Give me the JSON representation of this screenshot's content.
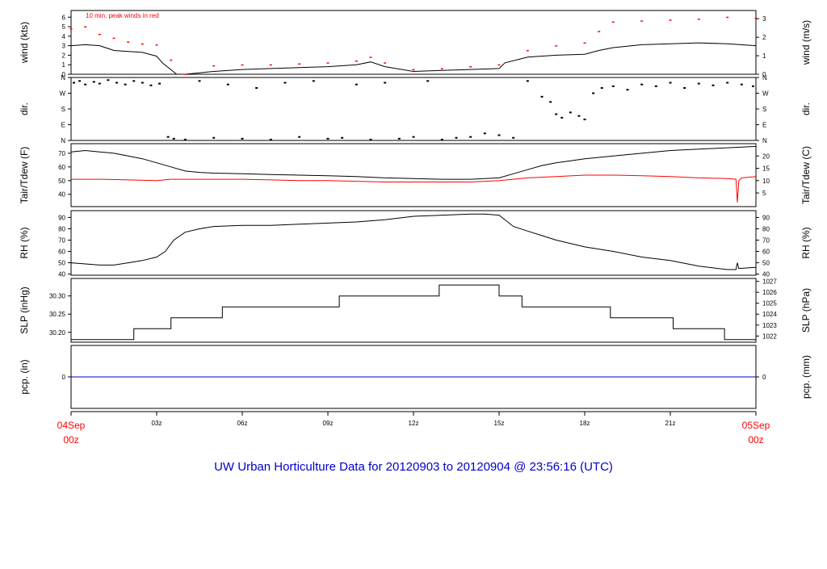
{
  "title": "UW Urban Horticulture Data for 20120903  to  20120904 @ 23:56:16  (UTC)",
  "annotation": "10 min. peak winds in red",
  "colors": {
    "axis": "#000000",
    "primary": "#000000",
    "secondary": "#ff0000",
    "precip": "#0000cc",
    "title": "#0000cc",
    "date": "#ff0000"
  },
  "time_axis": {
    "range_hours": [
      0,
      24
    ],
    "ticks": [
      {
        "hour": 0,
        "label": "04Sep",
        "label2": "00z",
        "color": "red"
      },
      {
        "hour": 3,
        "label": "03z"
      },
      {
        "hour": 6,
        "label": "06z"
      },
      {
        "hour": 9,
        "label": "09z"
      },
      {
        "hour": 12,
        "label": "12z"
      },
      {
        "hour": 15,
        "label": "15z"
      },
      {
        "hour": 18,
        "label": "18z"
      },
      {
        "hour": 21,
        "label": "21z"
      },
      {
        "hour": 24,
        "label": "05Sep",
        "label2": "00z",
        "color": "red"
      }
    ]
  },
  "chart_data": [
    {
      "id": "wind",
      "type": "line",
      "ylabel": "wind (kts)",
      "ylabel_right": "wind (m/s)",
      "ylim": [
        0,
        6.7
      ],
      "yticks": [
        "0",
        "1",
        "2",
        "3",
        "4",
        "5",
        "6"
      ],
      "yticks_right": [
        {
          "v": 0,
          "label": "0"
        },
        {
          "v": 1.944,
          "label": "1"
        },
        {
          "v": 3.888,
          "label": "2"
        },
        {
          "v": 5.832,
          "label": "3"
        }
      ],
      "series": [
        {
          "role": "speed",
          "color": "#000000",
          "x": [
            0,
            0.5,
            1,
            1.5,
            2,
            2.5,
            3,
            3.2,
            3.7,
            4,
            5,
            6,
            7,
            8,
            9,
            10,
            10.5,
            11,
            12,
            13,
            14,
            15,
            15.2,
            16,
            17,
            18,
            18.5,
            19,
            20,
            21,
            22,
            23,
            24
          ],
          "values": [
            3.0,
            3.1,
            3.0,
            2.5,
            2.4,
            2.3,
            1.9,
            1.2,
            0,
            0,
            0.3,
            0.5,
            0.6,
            0.7,
            0.8,
            1.0,
            1.3,
            0.8,
            0.3,
            0.4,
            0.5,
            0.6,
            1.2,
            1.8,
            2.0,
            2.1,
            2.5,
            2.8,
            3.1,
            3.2,
            3.3,
            3.2,
            3.0
          ]
        },
        {
          "role": "peak",
          "color": "#ff0000",
          "x": [
            0,
            0.5,
            1,
            1.5,
            2,
            2.5,
            3,
            3.5,
            4,
            5,
            6,
            7,
            8,
            9,
            10,
            10.5,
            11,
            12,
            13,
            14,
            15,
            16,
            17,
            18,
            18.5,
            19,
            20,
            21,
            22,
            23,
            24
          ],
          "values": [
            4.8,
            5.0,
            4.2,
            3.8,
            3.4,
            3.2,
            3.1,
            1.5,
            0,
            0.9,
            1.0,
            1.0,
            1.1,
            1.2,
            1.4,
            1.8,
            1.2,
            0.5,
            0.6,
            0.8,
            1.0,
            2.5,
            3.0,
            3.3,
            4.5,
            5.5,
            5.6,
            5.7,
            5.8,
            6.0,
            5.9
          ]
        }
      ]
    },
    {
      "id": "dir",
      "type": "scatter",
      "ylabel": "dir.",
      "ylabel_right": "dir.",
      "ylim": [
        0,
        360
      ],
      "yticks": [
        {
          "v": 0,
          "label": "N"
        },
        {
          "v": 90,
          "label": "E"
        },
        {
          "v": 180,
          "label": "S"
        },
        {
          "v": 270,
          "label": "W"
        },
        {
          "v": 360,
          "label": "N"
        }
      ],
      "series": [
        {
          "role": "direction",
          "color": "#000000",
          "x": [
            0.1,
            0.3,
            0.5,
            0.8,
            1.0,
            1.3,
            1.6,
            1.9,
            2.2,
            2.5,
            2.8,
            3.1,
            3.4,
            3.6,
            4.0,
            4.5,
            5.0,
            5.5,
            6.0,
            6.5,
            7.0,
            7.5,
            8.0,
            8.5,
            9.0,
            9.5,
            10.0,
            10.5,
            11.0,
            11.5,
            12.0,
            12.5,
            13.0,
            13.5,
            14.0,
            14.5,
            15.0,
            15.5,
            16.0,
            16.5,
            16.8,
            17.0,
            17.2,
            17.5,
            17.8,
            18.0,
            18.3,
            18.6,
            19.0,
            19.5,
            20.0,
            20.5,
            21.0,
            21.5,
            22.0,
            22.5,
            23.0,
            23.5,
            23.9
          ],
          "values": [
            330,
            340,
            320,
            335,
            325,
            345,
            330,
            320,
            340,
            330,
            315,
            325,
            20,
            10,
            5,
            340,
            15,
            320,
            10,
            300,
            5,
            330,
            20,
            340,
            10,
            15,
            320,
            5,
            330,
            10,
            20,
            340,
            5,
            15,
            20,
            40,
            30,
            15,
            340,
            250,
            220,
            150,
            130,
            160,
            140,
            120,
            270,
            300,
            310,
            290,
            320,
            310,
            330,
            300,
            325,
            315,
            330,
            320,
            310
          ]
        }
      ]
    },
    {
      "id": "temp",
      "type": "line",
      "ylabel": "Tair/Tdew (F)",
      "ylabel_right": "Tair/Tdew (C)",
      "ylim": [
        31,
        77
      ],
      "yticks": [
        "40",
        "50",
        "60",
        "70"
      ],
      "yticks_right": [
        {
          "v": 41,
          "label": "5"
        },
        {
          "v": 50,
          "label": "10"
        },
        {
          "v": 59,
          "label": "15"
        },
        {
          "v": 68,
          "label": "20"
        }
      ],
      "series": [
        {
          "role": "Tair",
          "color": "#000000",
          "x": [
            0,
            0.5,
            1,
            1.5,
            2,
            2.5,
            3,
            3.5,
            4,
            4.5,
            5,
            6,
            7,
            8,
            9,
            10,
            11,
            12,
            13,
            14,
            15,
            15.5,
            16,
            16.5,
            17,
            18,
            19,
            20,
            21,
            22,
            23,
            24
          ],
          "values": [
            71,
            72,
            71,
            70,
            68,
            66,
            63,
            60,
            57,
            56,
            55.5,
            55,
            54.5,
            54,
            53.5,
            53,
            52,
            51.5,
            51,
            51,
            52,
            55,
            58,
            61,
            63,
            66,
            68,
            70,
            72,
            73,
            74,
            75
          ]
        },
        {
          "role": "Tdew",
          "color": "#ff0000",
          "x": [
            0,
            1,
            2,
            3,
            3.5,
            4,
            5,
            6,
            7,
            8,
            9,
            10,
            11,
            12,
            13,
            14,
            15,
            16,
            17,
            18,
            19,
            20,
            21,
            22,
            23,
            23.3,
            23.35,
            23.4,
            23.5,
            24
          ],
          "values": [
            51,
            51,
            50.5,
            50,
            51,
            51,
            51,
            51,
            50.5,
            50,
            50,
            49.5,
            49,
            49,
            49,
            49,
            50,
            52,
            53,
            54,
            54,
            53.5,
            53,
            52,
            51.5,
            51,
            34,
            50,
            52,
            53
          ]
        }
      ]
    },
    {
      "id": "rh",
      "type": "line",
      "ylabel": "RH (%)",
      "ylabel_right": "RH (%)",
      "ylim": [
        39,
        96
      ],
      "yticks": [
        "40",
        "50",
        "60",
        "70",
        "80",
        "90"
      ],
      "series": [
        {
          "role": "rh",
          "color": "#000000",
          "x": [
            0,
            0.5,
            1,
            1.5,
            2,
            2.5,
            3,
            3.3,
            3.6,
            4,
            4.5,
            5,
            6,
            7,
            8,
            9,
            10,
            11,
            12,
            13,
            14,
            14.5,
            15,
            15.5,
            16,
            16.5,
            17,
            18,
            19,
            20,
            21,
            22,
            23,
            23.3,
            23.35,
            23.4,
            24
          ],
          "values": [
            50,
            49,
            48,
            48,
            50,
            52,
            55,
            60,
            70,
            77,
            80,
            82,
            83,
            83,
            84,
            85,
            86,
            88,
            91,
            92,
            93,
            93,
            92,
            82,
            78,
            74,
            70,
            64,
            60,
            55,
            52,
            47,
            44,
            44,
            50,
            45,
            46
          ]
        }
      ]
    },
    {
      "id": "slp",
      "type": "line",
      "ylabel": "SLP (inHg)",
      "ylabel_right": "SLP (hPa)",
      "ylim": [
        30.173,
        30.348
      ],
      "yticks": [
        "30.20",
        "30.25",
        "30.30"
      ],
      "yticks_right": [
        {
          "v": 30.19,
          "label": "1022"
        },
        {
          "v": 30.22,
          "label": "1023"
        },
        {
          "v": 30.25,
          "label": "1024"
        },
        {
          "v": 30.28,
          "label": "1025"
        },
        {
          "v": 30.31,
          "label": "1026"
        },
        {
          "v": 30.34,
          "label": "1027"
        }
      ],
      "series": [
        {
          "role": "slp",
          "color": "#000000",
          "x": [
            0,
            2.2,
            2.2,
            3.5,
            3.5,
            5.3,
            5.3,
            9.4,
            9.4,
            12.9,
            12.9,
            15.0,
            15.0,
            15.8,
            15.8,
            18.9,
            18.9,
            21.1,
            21.1,
            22.9,
            22.9,
            24
          ],
          "values": [
            30.18,
            30.18,
            30.21,
            30.21,
            30.24,
            30.24,
            30.27,
            30.27,
            30.3,
            30.3,
            30.33,
            30.33,
            30.3,
            30.3,
            30.27,
            30.27,
            30.24,
            30.24,
            30.21,
            30.21,
            30.18,
            30.18
          ]
        }
      ]
    },
    {
      "id": "pcp",
      "type": "line",
      "ylabel": "pcp. (in)",
      "ylabel_right": "pcp. (mm)",
      "ylim": [
        -0.5,
        0.5
      ],
      "yticks": [
        "0"
      ],
      "yticks_right": [
        {
          "v": 0,
          "label": "0"
        }
      ],
      "series": [
        {
          "role": "pcp",
          "color": "#0000cc",
          "x": [
            0,
            24
          ],
          "values": [
            0,
            0
          ]
        }
      ]
    }
  ]
}
